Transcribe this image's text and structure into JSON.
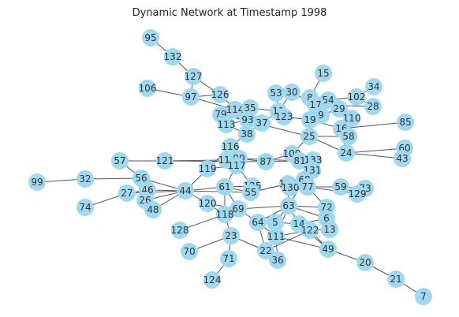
{
  "title": "Dynamic Network at Timestamp 1998",
  "colors": {
    "node_fill": "#9fd8ef",
    "edge": "#555555",
    "label": "#333333"
  },
  "nodes": [
    "95",
    "132",
    "127",
    "106",
    "97",
    "126",
    "53",
    "30",
    "15",
    "8",
    "54",
    "102",
    "34",
    "28",
    "17",
    "29",
    "9",
    "110",
    "85",
    "79",
    "114",
    "35",
    "11",
    "123",
    "93",
    "37",
    "19",
    "113",
    "38",
    "16",
    "58",
    "25",
    "116",
    "109",
    "24",
    "60",
    "43",
    "57",
    "121",
    "119",
    "115",
    "90",
    "117",
    "87",
    "81",
    "133",
    "131",
    "99",
    "32",
    "56",
    "46",
    "27",
    "44",
    "26",
    "48",
    "74",
    "61",
    "125",
    "55",
    "132b",
    "130",
    "68",
    "77",
    "59",
    "73",
    "129",
    "120",
    "69",
    "118",
    "63",
    "72",
    "6",
    "64",
    "5",
    "14",
    "122",
    "13",
    "128",
    "111",
    "23",
    "49",
    "70",
    "71",
    "22",
    "36",
    "20",
    "124",
    "21",
    "7"
  ],
  "labels": {
    "95": "95",
    "132": "132",
    "127": "127",
    "106": "106",
    "97": "97",
    "126": "126",
    "53": "53",
    "30": "30",
    "15": "15",
    "8": "8",
    "54": "54",
    "102": "102",
    "34": "34",
    "28": "28",
    "17": "17",
    "29": "29",
    "9": "9",
    "110": "110",
    "85": "85",
    "79": "79",
    "114": "114",
    "35": "35",
    "11": "11",
    "123": "123",
    "93": "93",
    "37": "37",
    "19": "19",
    "113": "113",
    "38": "38",
    "16": "16",
    "58": "58",
    "25": "25",
    "116": "116",
    "109": "109",
    "24": "24",
    "60": "60",
    "43": "43",
    "57": "57",
    "121": "121",
    "119": "119",
    "115": "115",
    "90": "90",
    "117": "117",
    "87": "87",
    "81": "81",
    "133": "133",
    "131": "131",
    "99": "99",
    "32": "32",
    "56": "56",
    "46": "46",
    "27": "27",
    "44": "44",
    "26": "26",
    "48": "48",
    "74": "74",
    "61": "61",
    "125": "125",
    "55": "55",
    "132b": "132",
    "130": "130",
    "68": "68",
    "77": "77",
    "59": "59",
    "73": "73",
    "129": "129",
    "120": "120",
    "69": "69",
    "118": "118",
    "63": "63",
    "72": "72",
    "6": "6",
    "64": "64",
    "5": "5",
    "14": "14",
    "122": "122",
    "13": "13",
    "128": "128",
    "111": "111",
    "23": "23",
    "49": "49",
    "70": "70",
    "71": "71",
    "22": "22",
    "36": "36",
    "20": "20",
    "124": "124",
    "21": "21",
    "7": "7"
  },
  "edges": [
    [
      "95",
      "132"
    ],
    [
      "132",
      "127"
    ],
    [
      "127",
      "97"
    ],
    [
      "127",
      "126"
    ],
    [
      "106",
      "97"
    ],
    [
      "97",
      "126"
    ],
    [
      "97",
      "114"
    ],
    [
      "126",
      "114"
    ],
    [
      "53",
      "11"
    ],
    [
      "30",
      "11"
    ],
    [
      "30",
      "17"
    ],
    [
      "15",
      "8"
    ],
    [
      "8",
      "17"
    ],
    [
      "8",
      "19"
    ],
    [
      "8",
      "54"
    ],
    [
      "54",
      "102"
    ],
    [
      "102",
      "34"
    ],
    [
      "102",
      "28"
    ],
    [
      "17",
      "29"
    ],
    [
      "17",
      "28"
    ],
    [
      "29",
      "110"
    ],
    [
      "29",
      "9"
    ],
    [
      "9",
      "19"
    ],
    [
      "19",
      "123"
    ],
    [
      "19",
      "16"
    ],
    [
      "19",
      "25"
    ],
    [
      "16",
      "85"
    ],
    [
      "16",
      "58"
    ],
    [
      "16",
      "24"
    ],
    [
      "79",
      "114"
    ],
    [
      "79",
      "93"
    ],
    [
      "114",
      "35"
    ],
    [
      "35",
      "93"
    ],
    [
      "35",
      "11"
    ],
    [
      "11",
      "123"
    ],
    [
      "11",
      "37"
    ],
    [
      "93",
      "37"
    ],
    [
      "93",
      "113"
    ],
    [
      "113",
      "38"
    ],
    [
      "37",
      "38"
    ],
    [
      "123",
      "19"
    ],
    [
      "79",
      "25"
    ],
    [
      "25",
      "109"
    ],
    [
      "25",
      "58"
    ],
    [
      "109",
      "81"
    ],
    [
      "24",
      "60"
    ],
    [
      "24",
      "43"
    ],
    [
      "58",
      "24"
    ],
    [
      "25",
      "24"
    ],
    [
      "38",
      "116"
    ],
    [
      "116",
      "115"
    ],
    [
      "115",
      "90"
    ],
    [
      "115",
      "117"
    ],
    [
      "90",
      "87"
    ],
    [
      "87",
      "109"
    ],
    [
      "87",
      "81"
    ],
    [
      "81",
      "133"
    ],
    [
      "81",
      "131"
    ],
    [
      "131",
      "68"
    ],
    [
      "57",
      "121"
    ],
    [
      "57",
      "56"
    ],
    [
      "121",
      "115"
    ],
    [
      "121",
      "87"
    ],
    [
      "119",
      "117"
    ],
    [
      "117",
      "61"
    ],
    [
      "117",
      "125"
    ],
    [
      "90",
      "81"
    ],
    [
      "99",
      "32"
    ],
    [
      "32",
      "56"
    ],
    [
      "56",
      "46"
    ],
    [
      "56",
      "44"
    ],
    [
      "46",
      "27"
    ],
    [
      "46",
      "26"
    ],
    [
      "46",
      "48"
    ],
    [
      "46",
      "44"
    ],
    [
      "27",
      "74"
    ],
    [
      "27",
      "44"
    ],
    [
      "26",
      "44"
    ],
    [
      "48",
      "44"
    ],
    [
      "44",
      "61"
    ],
    [
      "44",
      "55"
    ],
    [
      "44",
      "120"
    ],
    [
      "44",
      "116"
    ],
    [
      "61",
      "55"
    ],
    [
      "61",
      "125"
    ],
    [
      "61",
      "118"
    ],
    [
      "61",
      "69"
    ],
    [
      "55",
      "132b"
    ],
    [
      "55",
      "68"
    ],
    [
      "125",
      "55"
    ],
    [
      "132b",
      "130"
    ],
    [
      "130",
      "68"
    ],
    [
      "68",
      "77"
    ],
    [
      "77",
      "59"
    ],
    [
      "59",
      "73"
    ],
    [
      "59",
      "129"
    ],
    [
      "77",
      "129"
    ],
    [
      "132b",
      "63"
    ],
    [
      "68",
      "63"
    ],
    [
      "77",
      "72"
    ],
    [
      "120",
      "118"
    ],
    [
      "120",
      "69"
    ],
    [
      "118",
      "69"
    ],
    [
      "118",
      "23"
    ],
    [
      "69",
      "64"
    ],
    [
      "69",
      "63"
    ],
    [
      "63",
      "64"
    ],
    [
      "63",
      "5"
    ],
    [
      "63",
      "14"
    ],
    [
      "63",
      "72"
    ],
    [
      "63",
      "6"
    ],
    [
      "63",
      "111"
    ],
    [
      "64",
      "111"
    ],
    [
      "64",
      "22"
    ],
    [
      "5",
      "14"
    ],
    [
      "14",
      "122"
    ],
    [
      "14",
      "6"
    ],
    [
      "122",
      "13"
    ],
    [
      "6",
      "13"
    ],
    [
      "72",
      "6"
    ],
    [
      "122",
      "111"
    ],
    [
      "111",
      "36"
    ],
    [
      "111",
      "22"
    ],
    [
      "122",
      "49"
    ],
    [
      "128",
      "118"
    ],
    [
      "23",
      "70"
    ],
    [
      "23",
      "71"
    ],
    [
      "23",
      "22"
    ],
    [
      "71",
      "124"
    ],
    [
      "22",
      "36"
    ],
    [
      "22",
      "122"
    ],
    [
      "49",
      "20"
    ],
    [
      "20",
      "21"
    ],
    [
      "21",
      "7"
    ],
    [
      "111",
      "49"
    ],
    [
      "14",
      "49"
    ]
  ]
}
